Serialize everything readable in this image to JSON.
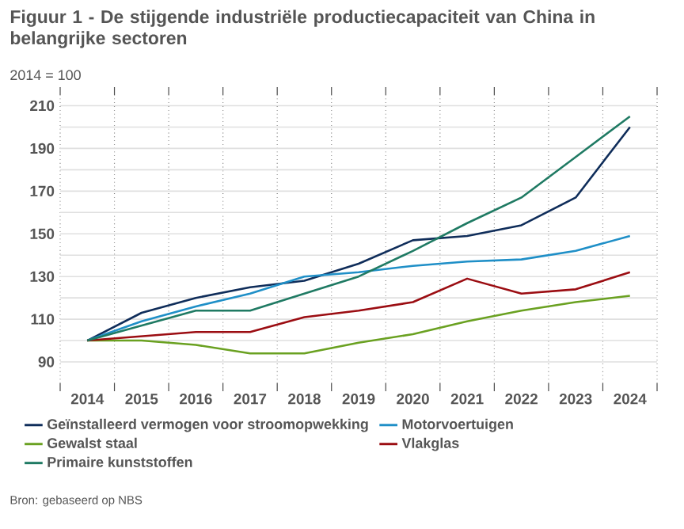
{
  "chart_data": {
    "type": "line",
    "title": "Figuur 1 - De stijgende industriële productiecapaciteit van China in belangrijke sectoren",
    "subtitle": "2014 = 100",
    "annotations": [
      "Bron: gebaseerd op NBS"
    ],
    "categories": [
      "2014",
      "2015",
      "2016",
      "2017",
      "2018",
      "2019",
      "2020",
      "2021",
      "2022",
      "2023",
      "2024"
    ],
    "series": [
      {
        "name": "Geïnstalleerd vermogen voor stroomopwekking",
        "color": "#0f2d5a",
        "values": [
          100,
          113,
          120,
          125,
          128,
          136,
          147,
          149,
          154,
          167,
          200
        ]
      },
      {
        "name": "Motorvoertuigen",
        "color": "#1f8fc7",
        "values": [
          100,
          109,
          116,
          122,
          130,
          132,
          135,
          137,
          138,
          142,
          149
        ]
      },
      {
        "name": "Gewalst staal",
        "color": "#6aa121",
        "values": [
          100,
          100,
          98,
          94,
          94,
          99,
          103,
          109,
          114,
          118,
          121
        ]
      },
      {
        "name": "Vlakglas",
        "color": "#9b0d12",
        "values": [
          100,
          102,
          104,
          104,
          111,
          114,
          118,
          129,
          122,
          124,
          132
        ]
      },
      {
        "name": "Primaire kunststoffen",
        "color": "#1f7a63",
        "values": [
          100,
          107,
          114,
          114,
          122,
          130,
          142,
          155,
          167,
          186,
          205
        ]
      }
    ],
    "ylim": [
      80,
      215
    ],
    "yticks": [
      90,
      {
        "value": 100,
        "label": null
      },
      110,
      {
        "value": 120,
        "label": null
      },
      130,
      {
        "value": 140,
        "label": null
      },
      150,
      {
        "value": 160,
        "label": null
      },
      170,
      {
        "value": 180,
        "label": null
      },
      190,
      {
        "value": 200,
        "label": null
      },
      210
    ],
    "grid": true,
    "legend": "bottom",
    "marker": "none",
    "line_style": "solid"
  }
}
